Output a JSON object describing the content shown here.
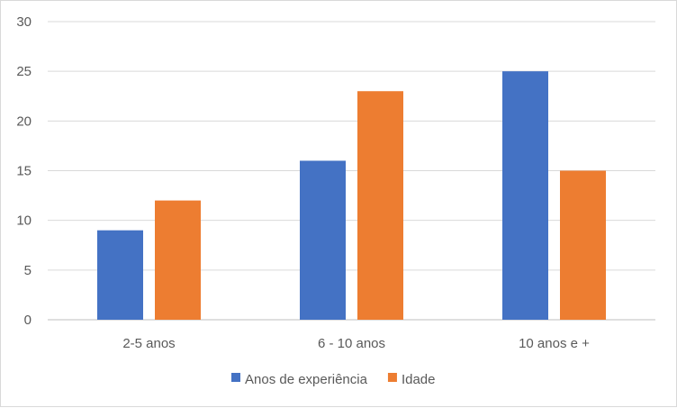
{
  "chart_data": {
    "type": "bar",
    "categories": [
      "2-5 anos",
      "6 - 10 anos",
      "10 anos e +"
    ],
    "series": [
      {
        "name": "Anos de experiência",
        "values": [
          9,
          16,
          25
        ],
        "color": "#4472c4"
      },
      {
        "name": "Idade",
        "values": [
          12,
          23,
          15
        ],
        "color": "#ed7d31"
      }
    ],
    "title": "",
    "xlabel": "",
    "ylabel": "",
    "ylim": [
      0,
      30
    ],
    "yticks": [
      0,
      5,
      10,
      15,
      20,
      25,
      30
    ],
    "grid": true,
    "legend_position": "bottom",
    "gridline_color": "#d9d9d9",
    "axis_color": "#bfbfbf"
  }
}
